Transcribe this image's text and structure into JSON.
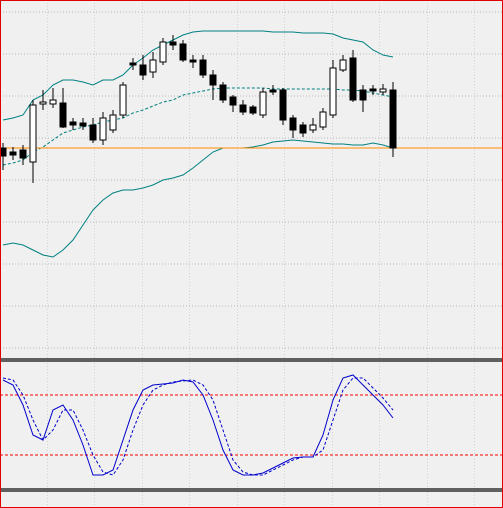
{
  "chart_data": [
    {
      "type": "candlestick",
      "ylim": [
        0,
        358
      ],
      "yticks": [
        10,
        52,
        94,
        136,
        178,
        220,
        262,
        304,
        346
      ],
      "grid": true,
      "up_color": "#ffffff",
      "down_color": "#000000",
      "open": [
        210,
        206,
        208,
        196,
        254,
        254,
        255,
        236,
        235,
        233,
        218,
        228,
        243,
        295,
        293,
        286,
        296,
        316,
        314,
        298,
        298,
        283,
        273,
        261,
        253,
        251,
        243,
        268,
        268,
        240,
        233,
        228,
        231,
        243,
        288,
        300,
        268,
        269,
        266,
        268
      ],
      "close": [
        202,
        203,
        200,
        253,
        256,
        258,
        231,
        233,
        232,
        218,
        240,
        243,
        273,
        293,
        283,
        298,
        316,
        313,
        298,
        296,
        283,
        273,
        258,
        253,
        246,
        245,
        266,
        266,
        238,
        228,
        225,
        233,
        246,
        290,
        298,
        258,
        258,
        267,
        269,
        210
      ],
      "high": [
        215,
        211,
        213,
        258,
        268,
        270,
        270,
        240,
        240,
        240,
        246,
        248,
        276,
        300,
        303,
        306,
        320,
        323,
        318,
        303,
        303,
        288,
        276,
        263,
        258,
        253,
        270,
        273,
        270,
        243,
        236,
        240,
        250,
        298,
        303,
        308,
        273,
        273,
        274,
        276
      ],
      "low": [
        188,
        198,
        193,
        175,
        248,
        250,
        230,
        228,
        228,
        215,
        213,
        225,
        240,
        288,
        278,
        280,
        293,
        308,
        296,
        290,
        280,
        258,
        255,
        246,
        243,
        243,
        240,
        263,
        233,
        220,
        221,
        225,
        228,
        240,
        286,
        256,
        246,
        263,
        263,
        201
      ],
      "series": [
        {
          "name": "upper",
          "color": "#008080",
          "values": [
            238,
            240,
            243,
            258,
            263,
            273,
            278,
            278,
            276,
            273,
            278,
            278,
            283,
            293,
            300,
            308,
            313,
            318,
            323,
            326,
            327,
            327,
            327,
            327,
            327,
            327,
            327,
            326,
            326,
            326,
            325,
            325,
            325,
            324,
            320,
            318,
            316,
            308,
            303,
            301
          ]
        },
        {
          "name": "middle",
          "color": "#008080",
          "values": [
            193,
            195,
            198,
            206,
            211,
            218,
            225,
            228,
            231,
            233,
            236,
            238,
            240,
            245,
            248,
            252,
            256,
            258,
            263,
            265,
            267,
            269,
            270,
            270,
            270,
            270,
            270,
            269,
            269,
            269,
            269,
            269,
            269,
            269,
            268,
            268,
            267,
            265,
            263,
            261
          ]
        },
        {
          "name": "lower",
          "color": "#008080",
          "values": [
            113,
            115,
            113,
            108,
            103,
            101,
            108,
            118,
            133,
            148,
            158,
            165,
            168,
            168,
            170,
            173,
            178,
            180,
            183,
            190,
            198,
            206,
            210,
            210,
            210,
            211,
            213,
            216,
            217,
            218,
            217,
            216,
            215,
            214,
            214,
            213,
            213,
            215,
            213,
            210
          ]
        }
      ],
      "price_line": 210,
      "price_line_color": "#ff8c00"
    },
    {
      "type": "line",
      "ylim": [
        -13,
        113
      ],
      "levels": [
        80,
        20
      ],
      "level_color": "#ff0000",
      "series": [
        {
          "name": "K",
          "color": "#0000cc",
          "values": [
            95,
            90,
            70,
            40,
            35,
            65,
            70,
            55,
            30,
            0,
            0,
            5,
            35,
            65,
            85,
            90,
            91,
            92,
            95,
            93,
            80,
            55,
            25,
            5,
            0,
            0,
            2,
            7,
            12,
            17,
            18,
            18,
            40,
            75,
            97,
            100,
            90,
            80,
            70,
            57
          ]
        },
        {
          "name": "D",
          "color": "#0000cc",
          "values": [
            97,
            95,
            80,
            55,
            35,
            45,
            65,
            65,
            45,
            20,
            3,
            0,
            15,
            45,
            70,
            85,
            90,
            93,
            94,
            95,
            90,
            75,
            45,
            15,
            3,
            0,
            0,
            5,
            10,
            15,
            18,
            18,
            25,
            55,
            85,
            97,
            97,
            87,
            77,
            65
          ]
        }
      ]
    }
  ]
}
